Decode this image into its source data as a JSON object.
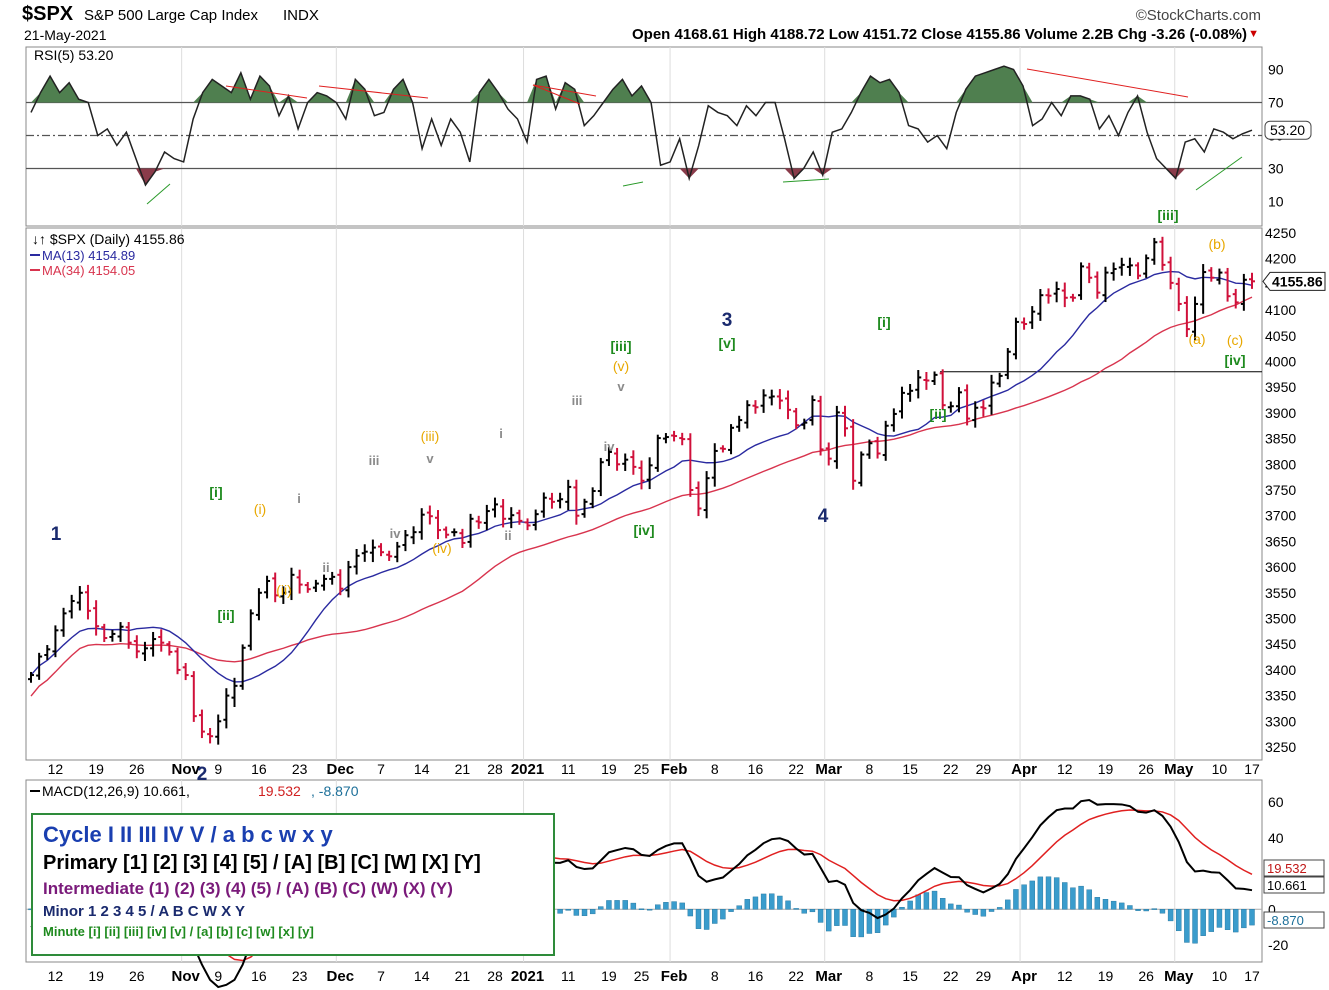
{
  "header": {
    "symbol": "$SPX",
    "name": "S&P 500 Large Cap Index",
    "exchange": "INDX",
    "date": "21-May-2021",
    "brand": "©StockCharts.com",
    "ohlc": "Open 4168.61  High 4188.72  Low 4151.72  Close 4155.86  Volume 2.2B  Chg -3.26 (-0.08%)",
    "chg_arrow": "▼"
  },
  "legend_box": {
    "cycle": "Cycle I II III IV V / a b c w x y",
    "primary": "Primary [1] [2] [3] [4] [5] / [A] [B] [C] [W] [X] [Y]",
    "intermediate": "Intermediate (1) (2) (3) (4) (5) / (A) (B) (C) (W) (X) (Y)",
    "minor": "Minor 1 2 3 4 5 / A B C W X Y",
    "minute": "Minute [i] [ii] [iii] [iv] [v] / [a] [b] [c] [w] [x] [y]"
  },
  "colors": {
    "up_bar": "#000000",
    "down_bar": "#d0103a",
    "ma13": "#2a2aa0",
    "ma34": "#d8344e",
    "rsi_fill_over": "#4f7f4f",
    "rsi_fill_under": "#8a3b4a",
    "macd_line": "#000000",
    "signal_line": "#e02020",
    "hist": "#3a9ccc",
    "wave_cycle": "#1a2a6e",
    "wave_minute": "#1e8a1e",
    "wave_minuette": "#e8a800",
    "wave_sub": "#8a8a8a",
    "legend_border": "#2e8b3a"
  },
  "chart_data": [
    {
      "type": "line",
      "panel": "rsi",
      "title": "RSI(5) 53.20",
      "last_value_label": "53.20",
      "ylim": [
        0,
        100
      ],
      "y_ticks": [
        10,
        30,
        50,
        70,
        90
      ],
      "reference_lines": [
        30,
        50,
        70
      ],
      "values": [
        64,
        76,
        86,
        76,
        82,
        72,
        70,
        50,
        54,
        44,
        52,
        36,
        20,
        28,
        40,
        36,
        34,
        60,
        76,
        84,
        80,
        76,
        88,
        72,
        86,
        80,
        62,
        74,
        54,
        70,
        76,
        74,
        70,
        60,
        84,
        78,
        62,
        64,
        78,
        84,
        70,
        42,
        60,
        44,
        60,
        52,
        34,
        76,
        84,
        76,
        66,
        60,
        46,
        84,
        86,
        66,
        82,
        78,
        56,
        62,
        70,
        78,
        84,
        74,
        80,
        70,
        32,
        34,
        48,
        24,
        44,
        68,
        64,
        62,
        56,
        68,
        62,
        70,
        70,
        48,
        24,
        30,
        40,
        26,
        52,
        54,
        64,
        76,
        86,
        82,
        84,
        76,
        56,
        54,
        46,
        50,
        42,
        64,
        78,
        86,
        88,
        90,
        92,
        90,
        80,
        56,
        60,
        70,
        62,
        74,
        74,
        72,
        54,
        62,
        50,
        64,
        74,
        52,
        36,
        30,
        24,
        46,
        48,
        40,
        54,
        52,
        48,
        51,
        53.2
      ]
    },
    {
      "type": "ohlc",
      "panel": "price",
      "title": "$SPX (Daily) 4155.86",
      "series_labels": [
        "MA(13) 4154.89",
        "MA(34) 4154.05"
      ],
      "last_value_label": "4155.86",
      "ylim": [
        3220,
        4270
      ],
      "y_ticks": [
        3250,
        3300,
        3350,
        3400,
        3450,
        3500,
        3550,
        3600,
        3650,
        3700,
        3750,
        3800,
        3850,
        3900,
        3950,
        4000,
        4050,
        4100,
        4150,
        4200,
        4250
      ],
      "x_tick_labels": [
        "12",
        "19",
        "26",
        "Nov",
        "9",
        "16",
        "23",
        "Dec",
        "7",
        "14",
        "21",
        "28",
        "2021",
        "11",
        "19",
        "25",
        "Feb",
        "8",
        "16",
        "22",
        "Mar",
        "8",
        "15",
        "22",
        "29",
        "Apr",
        "12",
        "19",
        "26",
        "May",
        "10",
        "17"
      ],
      "close": [
        3390,
        3426,
        3440,
        3477,
        3510,
        3534,
        3550,
        3515,
        3485,
        3462,
        3470,
        3484,
        3453,
        3436,
        3442,
        3460,
        3453,
        3435,
        3400,
        3390,
        3310,
        3280,
        3271,
        3300,
        3350,
        3369,
        3443,
        3510,
        3550,
        3573,
        3545,
        3550,
        3585,
        3566,
        3557,
        3568,
        3577,
        3581,
        3558,
        3600,
        3622,
        3630,
        3638,
        3629,
        3621,
        3640,
        3662,
        3668,
        3702,
        3699,
        3672,
        3663,
        3668,
        3647,
        3694,
        3687,
        3709,
        3722,
        3694,
        3701,
        3690,
        3681,
        3703,
        3735,
        3727,
        3732,
        3756,
        3700,
        3727,
        3748,
        3804,
        3824,
        3800,
        3809,
        3795,
        3768,
        3798,
        3851,
        3853,
        3855,
        3849,
        3750,
        3714,
        3773,
        3826,
        3830,
        3871,
        3886,
        3915,
        3911,
        3934,
        3932,
        3924,
        3906,
        3876,
        3881,
        3925,
        3829,
        3811,
        3901,
        3870,
        3768,
        3819,
        3841,
        3821,
        3875,
        3898,
        3939,
        3943,
        3969,
        3963,
        3974,
        3915,
        3913,
        3940,
        3889,
        3910,
        3909,
        3959,
        3972,
        4019,
        4077,
        4073,
        4097,
        4129,
        4128,
        4141,
        4124,
        4124,
        4185,
        4163,
        4134,
        4173,
        4180,
        4188,
        4187,
        4167,
        4201,
        4232,
        4188,
        4153,
        4112,
        4063,
        4112,
        4174,
        4163,
        4173,
        4127,
        4115,
        4159,
        4156
      ],
      "ma13_last": 4154.89,
      "ma34_last": 4154.05,
      "horizontal_line": 3980
    },
    {
      "type": "line",
      "panel": "macd",
      "title": "MACD(12,26,9) 10.661, 19.532, -8.870",
      "macd_label": "10.661",
      "signal_label": "19.532",
      "hist_label": "-8.870",
      "ylim": [
        -25,
        70
      ],
      "y_ticks": [
        -20,
        0,
        20,
        40,
        60
      ]
    }
  ],
  "axes": {
    "price_labels": [
      "4250",
      "4200",
      "4150",
      "4100",
      "4050",
      "4000",
      "3950",
      "3900",
      "3850",
      "3800",
      "3750",
      "3700",
      "3650",
      "3600",
      "3550",
      "3500",
      "3450",
      "3400",
      "3350",
      "3300",
      "3250"
    ],
    "rsi_labels": [
      "90",
      "70",
      "50",
      "30",
      "10"
    ],
    "macd_labels": [
      "60",
      "40",
      "20",
      "0",
      "-20"
    ],
    "x_labels": [
      "12",
      "19",
      "26",
      "Nov",
      "9",
      "16",
      "23",
      "Dec",
      "7",
      "14",
      "21",
      "28",
      "2021",
      "11",
      "19",
      "25",
      "Feb",
      "8",
      "16",
      "22",
      "Mar",
      "8",
      "15",
      "22",
      "29",
      "Apr",
      "12",
      "19",
      "26",
      "May",
      "10",
      "17"
    ],
    "rsi_title": "RSI(5) 53.20",
    "price_title": "$SPX (Daily) 4155.86",
    "ma13_label": "MA(13) 4154.89",
    "ma34_label": "MA(34) 4154.05",
    "macd_title_main": "MACD(12,26,9) 10.661,",
    "macd_title_signal": "19.532",
    "macd_title_hist": "-8.870"
  },
  "wave_labels": [
    {
      "text": "1",
      "cls": "cycle"
    },
    {
      "text": "2",
      "cls": "cycle"
    },
    {
      "text": "3",
      "cls": "cycle"
    },
    {
      "text": "4",
      "cls": "cycle"
    },
    {
      "text": "[i]",
      "cls": "minute"
    },
    {
      "text": "[ii]",
      "cls": "minute"
    },
    {
      "text": "[iii]",
      "cls": "minute"
    },
    {
      "text": "[iv]",
      "cls": "minute"
    },
    {
      "text": "[v]",
      "cls": "minute"
    },
    {
      "text": "[i]",
      "cls": "minute"
    },
    {
      "text": "[ii]",
      "cls": "minute"
    },
    {
      "text": "[iii]",
      "cls": "minute"
    },
    {
      "text": "[iv]",
      "cls": "minute"
    },
    {
      "text": "(i)",
      "cls": "minuette"
    },
    {
      "text": "(ii)",
      "cls": "minuette"
    },
    {
      "text": "(iii)",
      "cls": "minuette"
    },
    {
      "text": "(iv)",
      "cls": "minuette"
    },
    {
      "text": "(v)",
      "cls": "minuette"
    },
    {
      "text": "(a)",
      "cls": "minuette"
    },
    {
      "text": "(b)",
      "cls": "minuette"
    },
    {
      "text": "(c)",
      "cls": "minuette"
    },
    {
      "text": "i",
      "cls": "sub"
    },
    {
      "text": "ii",
      "cls": "sub"
    },
    {
      "text": "iii",
      "cls": "sub"
    },
    {
      "text": "iv",
      "cls": "sub"
    },
    {
      "text": "v",
      "cls": "sub"
    },
    {
      "text": "i",
      "cls": "sub"
    },
    {
      "text": "ii",
      "cls": "sub"
    },
    {
      "text": "iii",
      "cls": "sub"
    },
    {
      "text": "iv",
      "cls": "sub"
    },
    {
      "text": "v",
      "cls": "sub"
    }
  ]
}
